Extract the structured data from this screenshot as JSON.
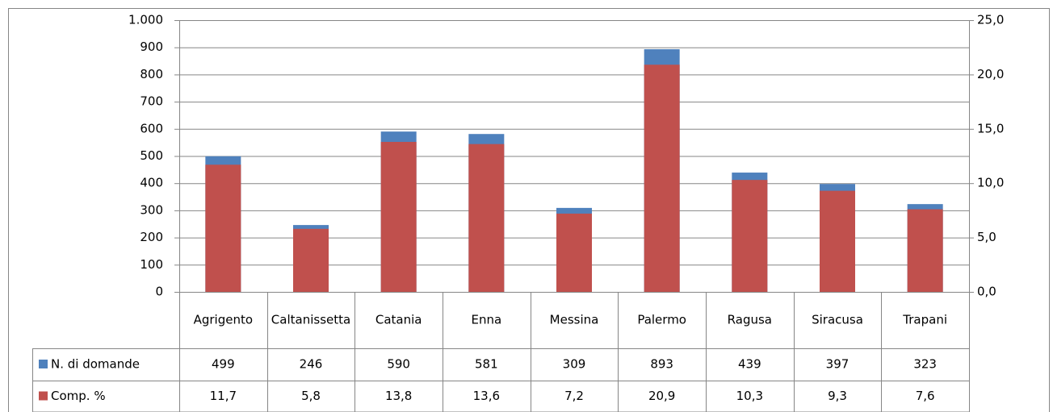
{
  "chart_data": {
    "type": "bar",
    "categories": [
      "Agrigento",
      "Caltanissetta",
      "Catania",
      "Enna",
      "Messina",
      "Palermo",
      "Ragusa",
      "Siracusa",
      "Trapani"
    ],
    "series": [
      {
        "name": "N. di domande",
        "color": "#4f81bd",
        "values": [
          499,
          246,
          590,
          581,
          309,
          893,
          439,
          397,
          323
        ]
      },
      {
        "name": "Comp. %",
        "color": "#c0504d",
        "axis": "y2",
        "values": [
          11.7,
          5.8,
          13.8,
          13.6,
          7.2,
          20.9,
          10.3,
          9.3,
          7.6
        ],
        "value_labels": [
          "11,7",
          "5,8",
          "13,8",
          "13,6",
          "7,2",
          "20,9",
          "10,3",
          "9,3",
          "7,6"
        ]
      }
    ],
    "ylim": [
      0,
      1000
    ],
    "yticks": [
      0,
      100,
      200,
      300,
      400,
      500,
      600,
      700,
      800,
      900,
      {
        "value": 1000,
        "label": "1.000"
      }
    ],
    "y2lim": [
      0,
      25
    ],
    "y2ticks": [
      {
        "value": 0,
        "label": "0,0"
      },
      {
        "value": 5,
        "label": "5,0"
      },
      {
        "value": 10,
        "label": "10,0"
      },
      {
        "value": 15,
        "label": "15,0"
      },
      {
        "value": 20,
        "label": "20,0"
      },
      {
        "value": 25,
        "label": "25,0"
      }
    ],
    "grid": true
  }
}
